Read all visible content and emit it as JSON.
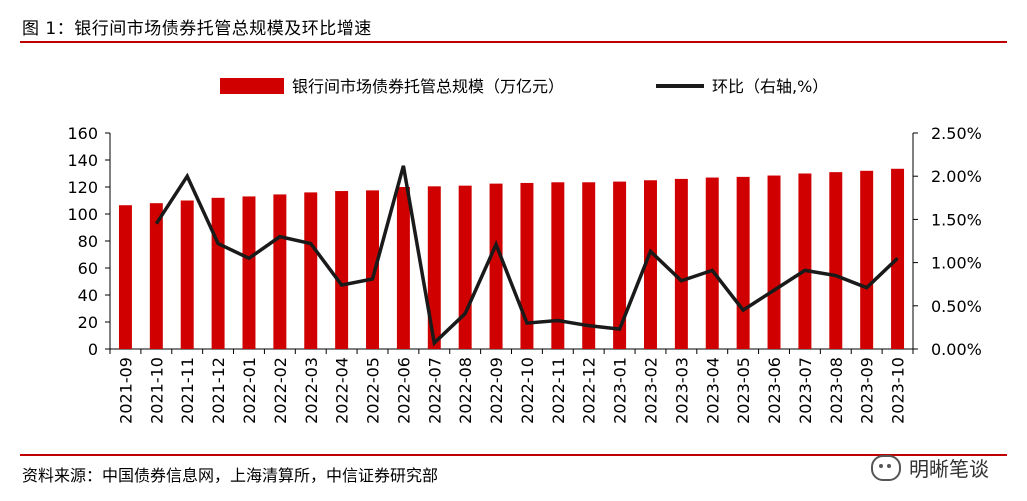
{
  "figure": {
    "title": "图 1：银行间市场债券托管总规模及环比增速",
    "source": "资料来源：中国债券信息网，上海清算所，中信证券研究部",
    "watermark": "明晰笔谈"
  },
  "chart_data": {
    "type": "bar",
    "categories": [
      "2021-09",
      "2021-10",
      "2021-11",
      "2021-12",
      "2022-01",
      "2022-02",
      "2022-03",
      "2022-04",
      "2022-05",
      "2022-06",
      "2022-07",
      "2022-08",
      "2022-09",
      "2022-10",
      "2022-11",
      "2022-12",
      "2023-01",
      "2023-02",
      "2023-03",
      "2023-04",
      "2023-05",
      "2023-06",
      "2023-07",
      "2023-08",
      "2023-09",
      "2023-10"
    ],
    "series": [
      {
        "name": "银行间市场债券托管总规模（万亿元）",
        "type": "bar",
        "axis": "left",
        "color": "#d00000",
        "values": [
          106.5,
          108.0,
          110.0,
          112.0,
          113.0,
          114.5,
          116.0,
          117.0,
          117.5,
          120.0,
          120.5,
          121.0,
          122.5,
          123.0,
          123.5,
          123.5,
          124.0,
          125.0,
          126.0,
          127.0,
          127.5,
          128.5,
          130.0,
          131.0,
          132.0,
          133.5
        ]
      },
      {
        "name": "环比（右轴,%）",
        "type": "line",
        "axis": "right",
        "color": "#1a1a1a",
        "values": [
          null,
          1.45,
          2.0,
          1.22,
          1.05,
          1.3,
          1.22,
          0.74,
          0.81,
          2.12,
          0.07,
          0.41,
          1.21,
          0.3,
          0.33,
          0.27,
          0.23,
          1.13,
          0.79,
          0.91,
          0.45,
          0.68,
          0.91,
          0.85,
          0.71,
          1.05
        ]
      }
    ],
    "y_left": {
      "min": 0,
      "max": 160,
      "ticks": [
        "0",
        "20",
        "40",
        "60",
        "80",
        "100",
        "120",
        "140",
        "160"
      ]
    },
    "y_right": {
      "min": 0,
      "max": 2.5,
      "ticks": [
        "0.00%",
        "0.50%",
        "1.00%",
        "1.50%",
        "2.00%",
        "2.50%"
      ]
    },
    "legend_position": "top",
    "grid": false
  }
}
